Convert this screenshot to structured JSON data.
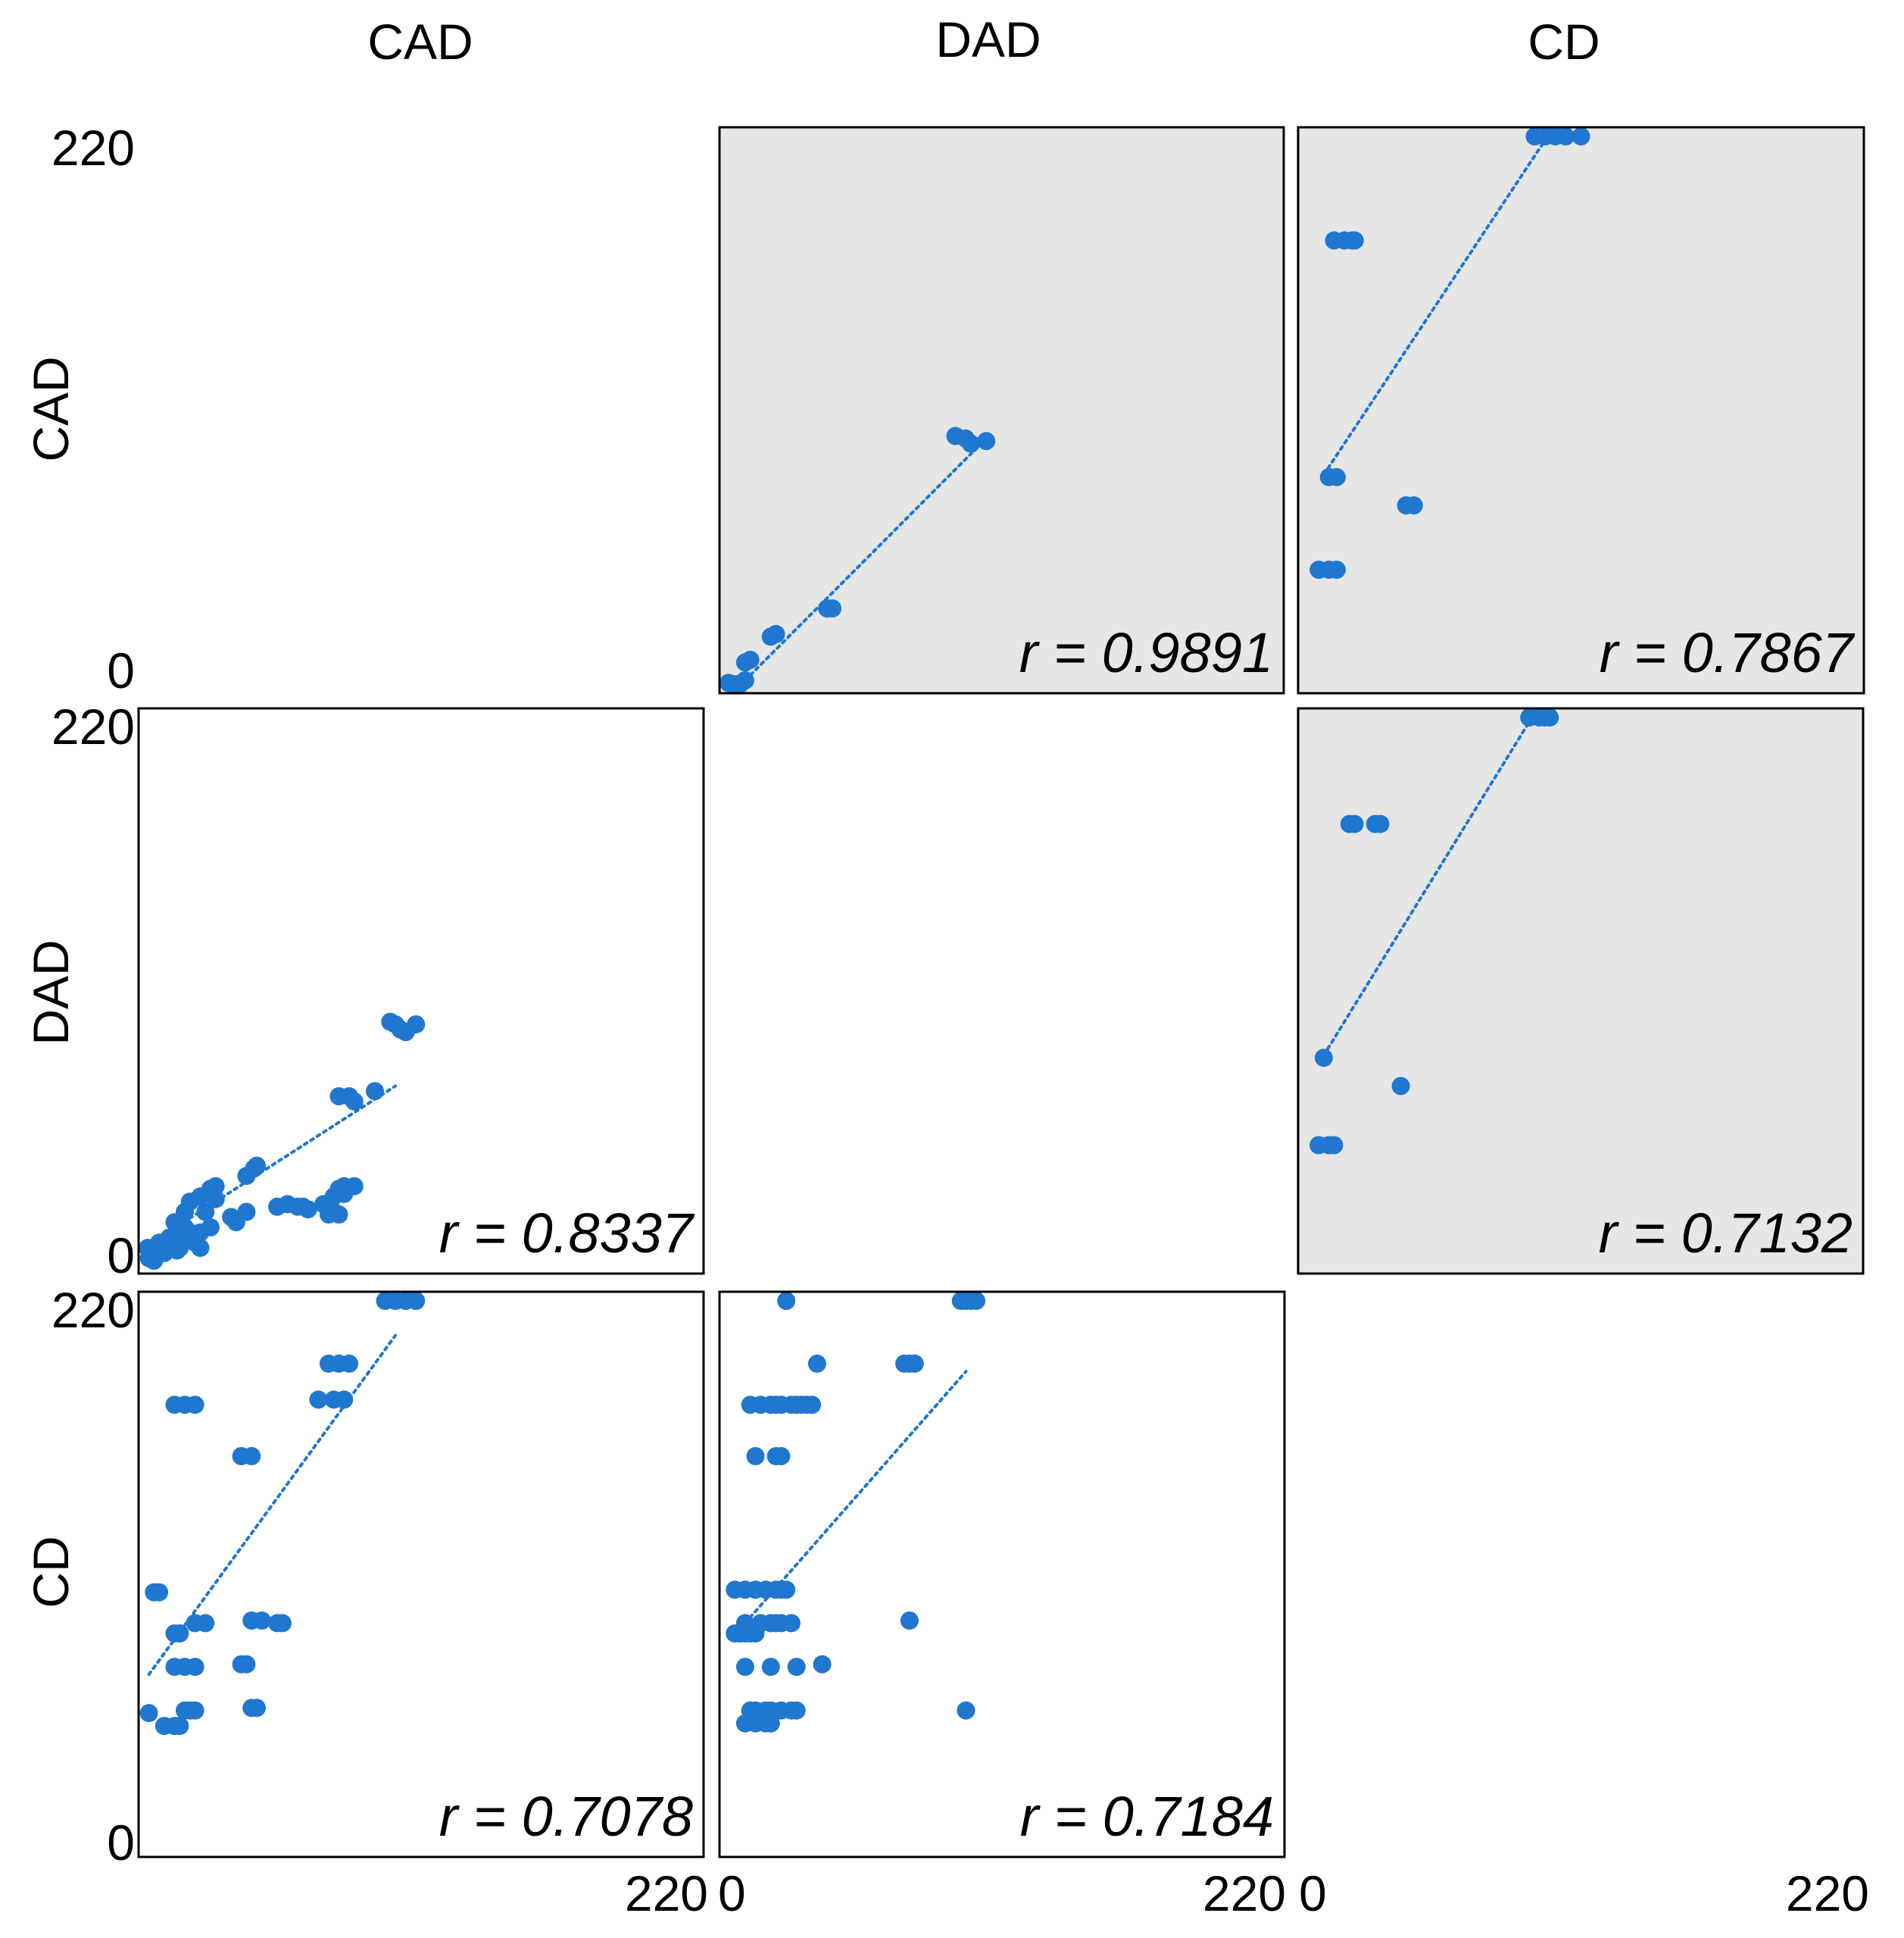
{
  "chart_data": {
    "type": "scatter",
    "title": "",
    "variables": [
      "CAD",
      "DAD",
      "CD"
    ],
    "axis_range": [
      0,
      220
    ],
    "axis_ticks": [
      "0",
      "220"
    ],
    "colors": {
      "points": "#1f77d0",
      "trend": "#1f77d0",
      "upper_panel_bg": "#e6e6e6",
      "lower_panel_bg": "#ffffff"
    },
    "panels": [
      {
        "id": "dad-vs-cad",
        "row": 0,
        "col": 1,
        "x_var": "DAD",
        "y_var": "CAD",
        "shaded": true,
        "r_label": "r = 0.9891",
        "trend": {
          "x": [
            10,
            100
          ],
          "y": [
            5,
            95
          ]
        },
        "points": [
          [
            2,
            4
          ],
          [
            5,
            3
          ],
          [
            7,
            1
          ],
          [
            8,
            2
          ],
          [
            10,
            5
          ],
          [
            12,
            13
          ],
          [
            10,
            12
          ],
          [
            20,
            22
          ],
          [
            22,
            23
          ],
          [
            42,
            33
          ],
          [
            44,
            33
          ],
          [
            92,
            100
          ],
          [
            96,
            99
          ],
          [
            98,
            97
          ],
          [
            104,
            98
          ]
        ]
      },
      {
        "id": "cd-vs-cad",
        "row": 0,
        "col": 2,
        "x_var": "CD",
        "y_var": "CAD",
        "shaded": true,
        "r_label": "r = 0.7867",
        "trend": {
          "x": [
            10,
            98
          ],
          "y": [
            85,
            218
          ]
        },
        "points": [
          [
            92,
            218
          ],
          [
            96,
            218
          ],
          [
            100,
            218
          ],
          [
            104,
            218
          ],
          [
            110,
            218
          ],
          [
            14,
            176
          ],
          [
            18,
            176
          ],
          [
            22,
            176
          ],
          [
            21,
            176
          ],
          [
            12,
            84
          ],
          [
            15,
            84
          ],
          [
            42,
            73
          ],
          [
            45,
            73
          ],
          [
            8,
            48
          ],
          [
            12,
            48
          ],
          [
            15,
            48
          ]
        ]
      },
      {
        "id": "cad-vs-dad",
        "row": 1,
        "col": 0,
        "x_var": "CAD",
        "y_var": "DAD",
        "shaded": false,
        "r_label": "r = 0.8337",
        "trend": {
          "x": [
            5,
            100
          ],
          "y": [
            12,
            73
          ]
        },
        "points": [
          [
            3,
            10
          ],
          [
            4,
            6
          ],
          [
            6,
            5
          ],
          [
            8,
            12
          ],
          [
            10,
            8
          ],
          [
            12,
            14
          ],
          [
            14,
            13
          ],
          [
            16,
            10
          ],
          [
            15,
            9
          ],
          [
            18,
            18
          ],
          [
            20,
            16
          ],
          [
            22,
            12
          ],
          [
            24,
            10
          ],
          [
            14,
            20
          ],
          [
            18,
            24
          ],
          [
            20,
            28
          ],
          [
            24,
            30
          ],
          [
            28,
            33
          ],
          [
            30,
            34
          ],
          [
            26,
            24
          ],
          [
            30,
            29
          ],
          [
            36,
            22
          ],
          [
            38,
            20
          ],
          [
            42,
            24
          ],
          [
            20,
            14
          ],
          [
            24,
            16
          ],
          [
            28,
            18
          ],
          [
            42,
            38
          ],
          [
            45,
            41
          ],
          [
            46,
            42
          ],
          [
            54,
            26
          ],
          [
            58,
            27
          ],
          [
            62,
            26
          ],
          [
            64,
            26
          ],
          [
            66,
            25
          ],
          [
            74,
            23
          ],
          [
            76,
            24
          ],
          [
            78,
            23
          ],
          [
            72,
            27
          ],
          [
            76,
            30
          ],
          [
            78,
            33
          ],
          [
            80,
            34
          ],
          [
            78,
            69
          ],
          [
            82,
            69
          ],
          [
            84,
            67
          ],
          [
            80,
            31
          ],
          [
            84,
            34
          ],
          [
            92,
            71
          ],
          [
            98,
            98
          ],
          [
            100,
            97
          ],
          [
            102,
            95
          ],
          [
            104,
            94
          ],
          [
            108,
            97
          ]
        ]
      },
      {
        "id": "cd-vs-dad",
        "row": 1,
        "col": 2,
        "x_var": "CD",
        "y_var": "DAD",
        "shaded": true,
        "r_label": "r = 0.7132",
        "trend": {
          "x": [
            10,
            92
          ],
          "y": [
            85,
            218
          ]
        },
        "points": [
          [
            90,
            218
          ],
          [
            94,
            218
          ],
          [
            98,
            218
          ],
          [
            96,
            218
          ],
          [
            20,
            175
          ],
          [
            22,
            175
          ],
          [
            30,
            175
          ],
          [
            32,
            175
          ],
          [
            10,
            84
          ],
          [
            40,
            73
          ],
          [
            8,
            50
          ],
          [
            12,
            50
          ],
          [
            14,
            50
          ]
        ]
      },
      {
        "id": "cad-vs-cd",
        "row": 2,
        "col": 0,
        "x_var": "CAD",
        "y_var": "CD",
        "shaded": false,
        "r_label": "r = 0.7078",
        "trend": {
          "x": [
            4,
            100
          ],
          "y": [
            71,
            203
          ]
        },
        "points": [
          [
            96,
            218
          ],
          [
            100,
            218
          ],
          [
            104,
            218
          ],
          [
            108,
            218
          ],
          [
            74,
            192
          ],
          [
            78,
            192
          ],
          [
            82,
            192
          ],
          [
            70,
            178
          ],
          [
            76,
            178
          ],
          [
            80,
            178
          ],
          [
            14,
            176
          ],
          [
            18,
            176
          ],
          [
            22,
            176
          ],
          [
            40,
            156
          ],
          [
            44,
            156
          ],
          [
            6,
            103
          ],
          [
            8,
            103
          ],
          [
            22,
            91
          ],
          [
            26,
            91
          ],
          [
            44,
            92
          ],
          [
            48,
            92
          ],
          [
            54,
            91
          ],
          [
            56,
            91
          ],
          [
            14,
            87
          ],
          [
            16,
            87
          ],
          [
            14,
            74
          ],
          [
            18,
            74
          ],
          [
            22,
            74
          ],
          [
            40,
            75
          ],
          [
            42,
            75
          ],
          [
            44,
            58
          ],
          [
            46,
            58
          ],
          [
            4,
            56
          ],
          [
            18,
            57
          ],
          [
            20,
            57
          ],
          [
            22,
            57
          ],
          [
            10,
            51
          ],
          [
            14,
            51
          ],
          [
            16,
            51
          ]
        ]
      },
      {
        "id": "dad-vs-cd",
        "row": 2,
        "col": 1,
        "x_var": "DAD",
        "y_var": "CD",
        "shaded": false,
        "r_label": "r = 0.7184",
        "trend": {
          "x": [
            10,
            96
          ],
          "y": [
            91,
            189
          ]
        },
        "points": [
          [
            26,
            218
          ],
          [
            94,
            218
          ],
          [
            96,
            218
          ],
          [
            98,
            218
          ],
          [
            100,
            218
          ],
          [
            38,
            192
          ],
          [
            72,
            192
          ],
          [
            74,
            192
          ],
          [
            76,
            192
          ],
          [
            12,
            176
          ],
          [
            16,
            176
          ],
          [
            20,
            176
          ],
          [
            22,
            176
          ],
          [
            24,
            176
          ],
          [
            28,
            176
          ],
          [
            30,
            176
          ],
          [
            32,
            176
          ],
          [
            34,
            176
          ],
          [
            36,
            176
          ],
          [
            14,
            156
          ],
          [
            22,
            156
          ],
          [
            24,
            156
          ],
          [
            6,
            104
          ],
          [
            10,
            104
          ],
          [
            14,
            104
          ],
          [
            18,
            104
          ],
          [
            22,
            104
          ],
          [
            24,
            104
          ],
          [
            26,
            104
          ],
          [
            10,
            91
          ],
          [
            16,
            91
          ],
          [
            20,
            91
          ],
          [
            22,
            91
          ],
          [
            24,
            91
          ],
          [
            28,
            91
          ],
          [
            74,
            92
          ],
          [
            6,
            87
          ],
          [
            8,
            87
          ],
          [
            10,
            87
          ],
          [
            12,
            87
          ],
          [
            14,
            87
          ],
          [
            10,
            74
          ],
          [
            20,
            74
          ],
          [
            30,
            74
          ],
          [
            40,
            75
          ],
          [
            12,
            57
          ],
          [
            14,
            57
          ],
          [
            18,
            57
          ],
          [
            20,
            57
          ],
          [
            24,
            57
          ],
          [
            28,
            57
          ],
          [
            30,
            57
          ],
          [
            10,
            52
          ],
          [
            14,
            52
          ],
          [
            18,
            52
          ],
          [
            20,
            52
          ],
          [
            96,
            57
          ]
        ]
      }
    ]
  }
}
